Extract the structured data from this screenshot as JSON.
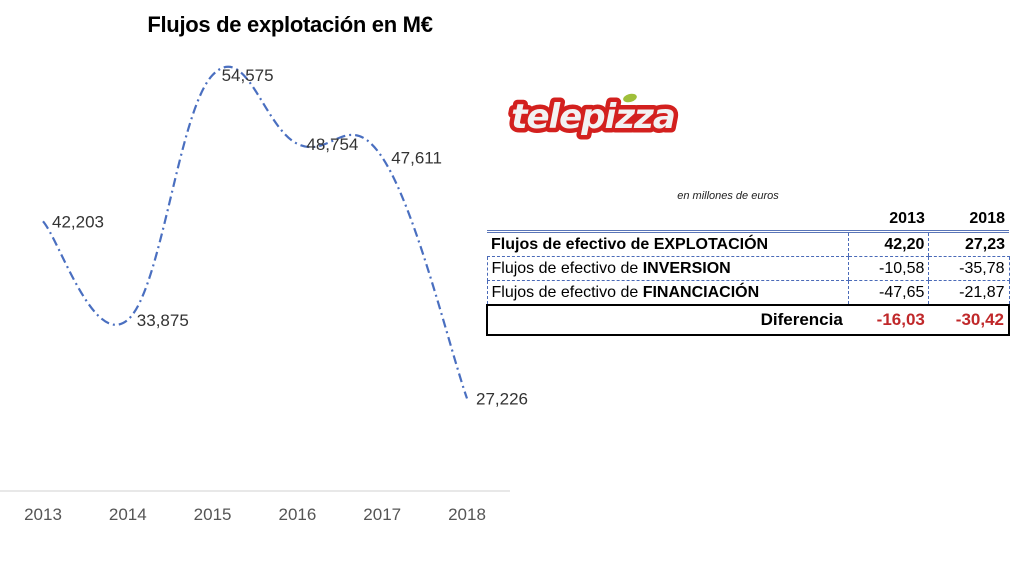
{
  "chart_data": {
    "type": "line",
    "title": "Flujos de explotación en M€",
    "categories": [
      "2013",
      "2014",
      "2015",
      "2016",
      "2017",
      "2018"
    ],
    "values": [
      42.203,
      33.875,
      54.575,
      48.754,
      47.611,
      27.226
    ],
    "data_labels": [
      "42,203",
      "33,875",
      "54,575",
      "48,754",
      "47,611",
      "27,226"
    ],
    "xlabel": "",
    "ylabel": "",
    "ylim": [
      19.4,
      54.575
    ],
    "grid": false,
    "line_style": "dash-dot smooth",
    "color": "#4a6fc0"
  },
  "logo": {
    "text": "telepizza"
  },
  "table": {
    "unit_note": "en millones de euros",
    "columns": [
      "2013",
      "2018"
    ],
    "rows": [
      {
        "prefix": "Flujos de efectivo de ",
        "emph": "EXPLOTACIÓN",
        "v2013": "42,20",
        "v2018": "27,23"
      },
      {
        "prefix": "Flujos de efectivo de ",
        "emph": "INVERSION",
        "v2013": "-10,58",
        "v2018": "-35,78"
      },
      {
        "prefix": "Flujos de efectivo de ",
        "emph": "FINANCIACIÓN",
        "v2013": "-47,65",
        "v2018": "-21,87"
      }
    ],
    "diff": {
      "label": "Diferencia",
      "v2013": "-16,03",
      "v2018": "-30,42"
    },
    "colors": {
      "negative_total": "#c0282a",
      "border": "#4a6ab8"
    }
  }
}
